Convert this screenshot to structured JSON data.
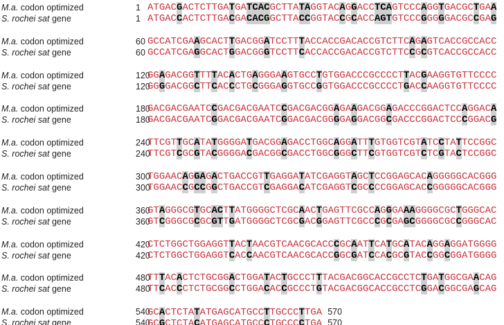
{
  "labels": {
    "ma": {
      "italic": "M.a.",
      "rest": "codon optimized"
    },
    "sr": {
      "italic": "S. rochei sat",
      "rest": "gene"
    }
  },
  "blocks": [
    {
      "start": "1",
      "ma": "ATGACGACTCTTGATGATCACGCTTATAGGTACAGGACCTCAGTCCCAGGTGACGCTGAA",
      "sr": "ATGACCACTCTTGACGACACGGCTTACCGGTACCGCACCAGTGTCCCGGGGGACGCCGAG"
    },
    {
      "start": "60",
      "ma": "GCCATCGAAGCACTTGACGGATCCTTTACCACCGACACCGTCTTCAGAGTCACCGCCACC",
      "sr": "GCCATCGAGGCACTGGACGGGTCCTTCACCACCGACACCGTCTTCCGCGTCACCGCCACC"
    },
    {
      "start": "120",
      "ma": "GGAGACGGTTTTACACTGAGGGAAGTGCCTGTGGACCCGCCCCTTACGAAGGTGTTCCCC",
      "sr": "GGGGACGGCTTCACCCTGCGGGAGGTGCCGGTGGACCCGCCCCTGACCAAGGTGTTCCCC"
    },
    {
      "start": "180",
      "ma": "GACGACGAATCCGACGACGAATCCGACGACGGAGAAGACGGAGACCCGGACTCCAGGACA",
      "sr": "GACGACGAATCGGACGACGAATCGGACGACGGGGAGGACGGCGACCCGGACTCCCGGACG"
    },
    {
      "start": "240",
      "ma": "TTCGTTGCATATGGGGATGACGGAGACCTGGCAGGATTTGTGGTCGTATCCTATTCCGGC",
      "sr": "TTCGTCGCGTACGGGGACGACGGCGACCTGGCGGGCTTCGTGGTCGTCTCGTACTCCGGC"
    },
    {
      "start": "300",
      "ma": "TGGAACAGGAGACTGACCGTTGAGGATATCGAGGTAGCTCCGGAGCACAGGGGGCACGGG",
      "sr": "TGGAACCGCCGGCTGACCGTCGAGGACATCGAGGTCGCCCCGGAGCACCGGGGGCACGGG"
    },
    {
      "start": "360",
      "ma": "GTAGGGCGTGCACTTATGGGGCTCGCAACTGAGTTCGCCAGGGAAAGGGGCGCTGGGCAC",
      "sr": "GTCGGGCGCGCGTTGATGGGGCTCGCGACGGAGTTCGCCCGCGAGCGGGGCGCCGGGCAC"
    },
    {
      "start": "420",
      "ma": "CTCTGGCTGGAGGTTACTAACGTCAACGCACCCGCAATTCATGCATACAGGAGGATGGGG",
      "sr": "CTCTGGCTGGAGGTCACCAACGTCAACGCACCGGCGATCCACGCGTACCGGCGGATGGGG"
    },
    {
      "start": "480",
      "ma": "TTTACACTCTGCGGACTGGATACTGCCCTTTACGACGGCACCGCCTCTGATGGCGAACAG",
      "sr": "TTCACCCTCTGCGGCCTGGACACCGCCCTGTACGACGGCACCGCCTCGGACGGCGAGCAG"
    },
    {
      "start": "540",
      "ma": "GCACTCTATATGAGCATGCCTTGCCCTTGA",
      "sr": "GCGCTCTACATGAGCATGCCCTGCCCCTGA"
    }
  ],
  "end": "570"
}
